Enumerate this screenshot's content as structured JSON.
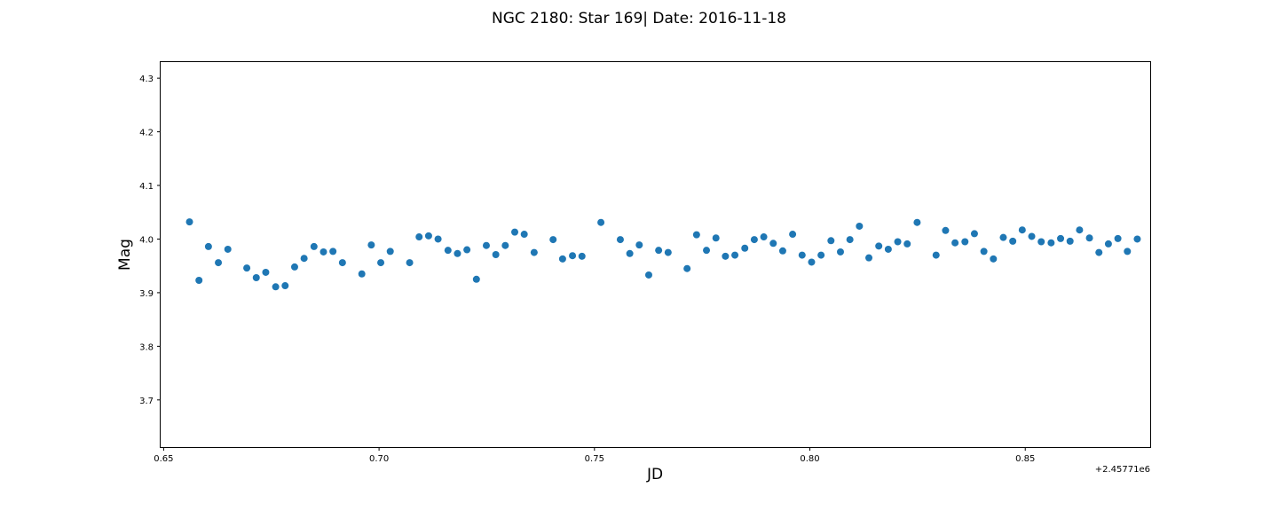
{
  "chart_data": {
    "type": "scatter",
    "title": "NGC 2180: Star 169| Date: 2016-11-18",
    "xlabel": "JD",
    "ylabel": "Mag",
    "x_offset_label": "+2.45771e6",
    "xlim": [
      0.6493,
      0.879
    ],
    "ylim": [
      3.612,
      4.33
    ],
    "x_ticks": [
      0.65,
      0.7,
      0.75,
      0.8,
      0.85
    ],
    "x_tick_labels": [
      "0.65",
      "0.70",
      "0.75",
      "0.80",
      "0.85"
    ],
    "y_ticks": [
      3.7,
      3.8,
      3.9,
      4.0,
      4.1,
      4.2,
      4.3
    ],
    "y_tick_labels": [
      "3.7",
      "3.8",
      "3.9",
      "4.0",
      "4.1",
      "4.2",
      "4.3"
    ],
    "grid": false,
    "marker_color": "#1f77b4",
    "x": [
      0.656,
      0.6582,
      0.6604,
      0.6627,
      0.6649,
      0.6693,
      0.6715,
      0.6737,
      0.676,
      0.6782,
      0.6804,
      0.6826,
      0.6849,
      0.6871,
      0.6893,
      0.6915,
      0.696,
      0.6982,
      0.7004,
      0.7026,
      0.7071,
      0.7093,
      0.7115,
      0.7137,
      0.716,
      0.7182,
      0.7204,
      0.7226,
      0.7249,
      0.7271,
      0.7293,
      0.7315,
      0.7337,
      0.736,
      0.7404,
      0.7426,
      0.7449,
      0.7471,
      0.7515,
      0.756,
      0.7582,
      0.7604,
      0.7626,
      0.7649,
      0.7671,
      0.7715,
      0.7737,
      0.776,
      0.7782,
      0.7804,
      0.7826,
      0.7849,
      0.7871,
      0.7893,
      0.7915,
      0.7937,
      0.796,
      0.7982,
      0.8004,
      0.8026,
      0.8049,
      0.8071,
      0.8093,
      0.8115,
      0.8137,
      0.816,
      0.8182,
      0.8204,
      0.8226,
      0.8249,
      0.8293,
      0.8315,
      0.8337,
      0.836,
      0.8382,
      0.8404,
      0.8426,
      0.8449,
      0.8471,
      0.8493,
      0.8515,
      0.8537,
      0.856,
      0.8582,
      0.8604,
      0.8626,
      0.8649,
      0.8671,
      0.8693,
      0.8715,
      0.8737,
      0.876
    ],
    "y": [
      4.032,
      3.923,
      3.986,
      3.956,
      3.981,
      3.946,
      3.928,
      3.938,
      3.911,
      3.913,
      3.948,
      3.964,
      3.986,
      3.976,
      3.977,
      3.956,
      3.935,
      3.989,
      3.956,
      3.977,
      3.956,
      4.004,
      4.006,
      4.0,
      3.979,
      3.973,
      3.98,
      3.925,
      3.988,
      3.971,
      3.988,
      4.013,
      4.009,
      3.975,
      3.999,
      3.963,
      3.969,
      3.968,
      4.031,
      3.999,
      3.973,
      3.989,
      3.933,
      3.979,
      3.975,
      3.945,
      4.008,
      3.979,
      4.002,
      3.968,
      3.97,
      3.983,
      3.999,
      4.004,
      3.992,
      3.978,
      4.009,
      3.97,
      3.957,
      3.97,
      3.997,
      3.976,
      3.999,
      4.024,
      3.965,
      3.987,
      3.981,
      3.995,
      3.991,
      4.031,
      3.97,
      4.016,
      3.993,
      3.995,
      4.01,
      3.977,
      3.963,
      4.003,
      3.996,
      4.017,
      4.005,
      3.995,
      3.993,
      4.001,
      3.996,
      4.017,
      4.002,
      3.975,
      3.991,
      4.001,
      3.977,
      4.0
    ]
  }
}
